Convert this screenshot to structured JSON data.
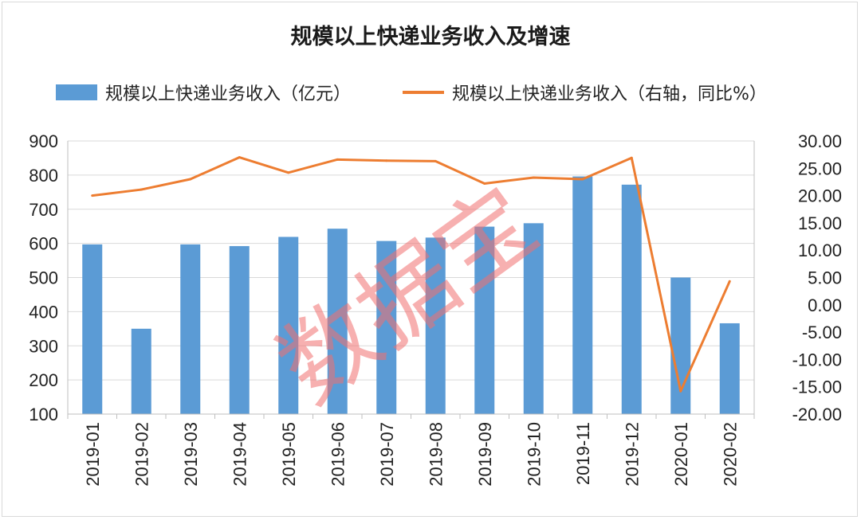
{
  "chart_data": {
    "type": "bar+line",
    "title": "规模以上快递业务收入及增速",
    "categories": [
      "2019-01",
      "2019-02",
      "2019-03",
      "2019-04",
      "2019-05",
      "2019-06",
      "2019-07",
      "2019-08",
      "2019-09",
      "2019-10",
      "2019-11",
      "2019-12",
      "2020-01",
      "2020-02"
    ],
    "series": [
      {
        "name": "规模以上快递业务收入（亿元）",
        "type": "bar",
        "axis": "left",
        "color": "#5b9bd5",
        "values": [
          597,
          350,
          597,
          592,
          619,
          643,
          607,
          617,
          649,
          659,
          796,
          772,
          500,
          366
        ]
      },
      {
        "name": "规模以上快递业务收入（右轴，同比%）",
        "type": "line",
        "axis": "right",
        "color": "#ed7d31",
        "values": [
          20.0,
          21.1,
          23.0,
          27.0,
          24.2,
          26.6,
          26.4,
          26.3,
          22.2,
          23.3,
          23.0,
          26.9,
          -15.8,
          4.3
        ]
      }
    ],
    "y_left": {
      "min": 100,
      "max": 900,
      "ticks": [
        "100",
        "200",
        "300",
        "400",
        "500",
        "600",
        "700",
        "800",
        "900"
      ]
    },
    "y_right": {
      "min": -20,
      "max": 30,
      "ticks": [
        "-20.00",
        "-15.00",
        "-10.00",
        "-5.00",
        "0.00",
        "5.00",
        "10.00",
        "15.00",
        "20.00",
        "25.00",
        "30.00"
      ]
    },
    "grid": true,
    "legend_position": "top"
  },
  "watermark": "数据宝"
}
